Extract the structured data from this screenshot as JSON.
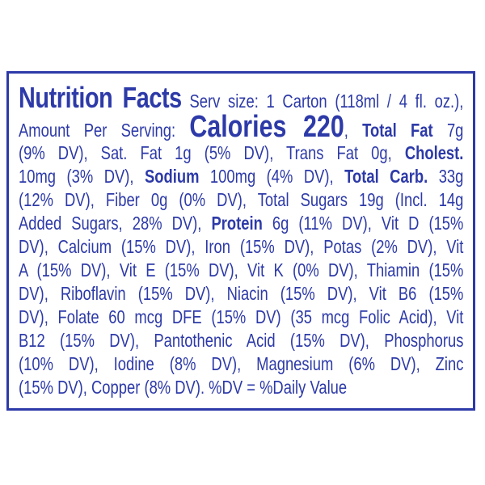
{
  "colors": {
    "ink": "#2d3aa8",
    "background": "#ffffff"
  },
  "label": {
    "lines": [
      [
        {
          "text": "Nutrition Facts",
          "style": "title"
        },
        {
          "text": " Serv size: 1 Carton (118ml / 4 fl. oz.),"
        }
      ],
      [
        {
          "text": "Amount Per Serving: "
        },
        {
          "text": "Calories 220",
          "style": "large"
        },
        {
          "text": ", "
        },
        {
          "text": "Total Fat",
          "style": "bold"
        },
        {
          "text": " 7g"
        }
      ],
      [
        {
          "text": "(9% DV), Sat. Fat 1g (5% DV), Trans Fat 0g, "
        },
        {
          "text": "Cholest.",
          "style": "bold"
        }
      ],
      [
        {
          "text": "10mg (3% DV), "
        },
        {
          "text": "Sodium",
          "style": "bold"
        },
        {
          "text": " 100mg (4% DV), "
        },
        {
          "text": "Total Carb.",
          "style": "bold"
        },
        {
          "text": " 33g"
        }
      ],
      [
        {
          "text": "(12% DV), Fiber 0g (0% DV), Total Sugars 19g (Incl. 14g"
        }
      ],
      [
        {
          "text": "Added Sugars, 28% DV), "
        },
        {
          "text": "Protein",
          "style": "bold"
        },
        {
          "text": " 6g (11% DV), Vit D (15%"
        }
      ],
      [
        {
          "text": "DV), Calcium (15% DV), Iron (15% DV), Potas (2% DV), Vit"
        }
      ],
      [
        {
          "text": "A (15% DV), Vit E (15% DV), Vit K (0% DV), Thiamin (15%"
        }
      ],
      [
        {
          "text": "DV), Riboflavin (15% DV), Niacin (15% DV), Vit B6 (15%"
        }
      ],
      [
        {
          "text": "DV), Folate 60 mcg DFE (15% DV) (35 mcg Folic Acid), Vit"
        }
      ],
      [
        {
          "text": "B12 (15% DV), Pantothenic Acid (15% DV), Phosphorus"
        }
      ],
      [
        {
          "text": "(10% DV), Iodine (8% DV), Magnesium (6% DV), Zinc"
        }
      ],
      [
        {
          "text": "(15% DV), Copper (8% DV). %DV = %Daily Value"
        }
      ]
    ]
  }
}
